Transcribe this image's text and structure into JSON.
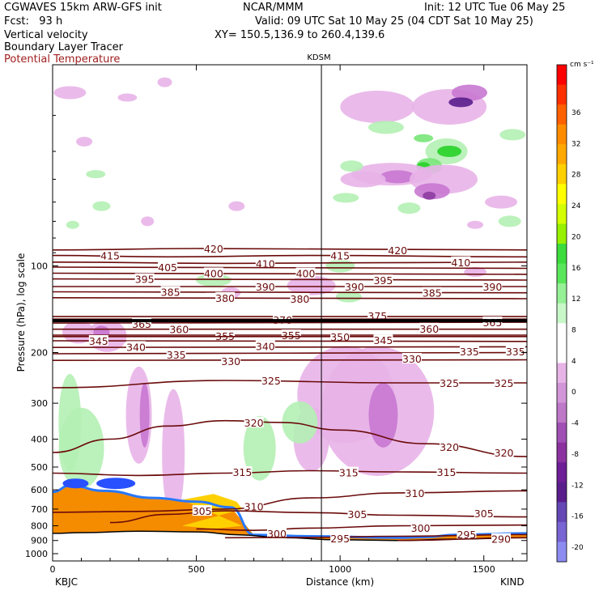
{
  "header": {
    "line1_left": "CGWAVES 15km ARW-GFS init",
    "line1_mid": "NCAR/MMM",
    "line1_right": "Init: 12 UTC Tue 06 May 25",
    "fcst": "Fcst:   93 h",
    "valid": "Valid: 09 UTC Sat 10 May 25 (04 CDT Sat 10 May 25)",
    "field1": "Vertical velocity",
    "field2": "Boundary Layer Tracer",
    "field3": "Potential Temperature",
    "xy": "XY= 150.5,136.9 to 260.4,139.6",
    "station_mid": "KDSM",
    "station_left": "KBJC",
    "station_right": "KIND"
  },
  "colors": {
    "theta": "#6b0a0a",
    "tropopause": "#000000",
    "pos_light": "#b4f0b4",
    "pos_mid": "#78e678",
    "pos_strong": "#28d228",
    "neg_light": "#e8b4e8",
    "neg_mid": "#c878d2",
    "neg_strong": "#8c3ca0",
    "neg_deep": "#5a1e8c",
    "terrain": "#f58c00"
  },
  "chart_data": {
    "type": "cross-section",
    "xlabel": "Distance (km)",
    "ylabel": "Pressure (hPa), log scale",
    "xlim": [
      0,
      1650
    ],
    "ylim": [
      1060,
      20
    ],
    "y_scale": "log",
    "x_ticks": [
      0,
      500,
      1000,
      1500
    ],
    "y_ticks": [
      100,
      200,
      300,
      400,
      500,
      600,
      700,
      800,
      900,
      1000
    ],
    "station_marker_km": 935,
    "tropopause_hpa": 155,
    "colorbar": {
      "unit": "cm s⁻¹",
      "tick_labels": [
        "36",
        "32",
        "28",
        "24",
        "20",
        "16",
        "12",
        "8",
        "4",
        "0",
        "-4",
        "-8",
        "-12",
        "-16",
        "-20"
      ],
      "colors": [
        "#ff0000",
        "#ff3000",
        "#ff6000",
        "#ff8c00",
        "#ffa800",
        "#ffd000",
        "#ffff00",
        "#d4ff00",
        "#96f000",
        "#3cdc3c",
        "#5ae65a",
        "#96f096",
        "#c8f8c8",
        "#ffffff",
        "#ffffff",
        "#e6b4e6",
        "#d296d8",
        "#be78c8",
        "#a050b4",
        "#8c32a0",
        "#6e1e96",
        "#5a1e8c",
        "#6446b4",
        "#7864d2",
        "#8c8cf0"
      ]
    },
    "theta_contours": [
      {
        "label": "415",
        "points": [
          [
            0,
            92
          ],
          [
            400,
            93
          ],
          [
            900,
            92
          ],
          [
            1650,
            93
          ]
        ],
        "label_at": [
          [
            200,
            92
          ],
          [
            1000,
            92
          ]
        ]
      },
      {
        "label": "420",
        "points": [
          [
            0,
            88
          ],
          [
            500,
            87
          ],
          [
            1650,
            88
          ]
        ],
        "label_at": [
          [
            560,
            87
          ],
          [
            1200,
            88
          ]
        ]
      },
      {
        "label": "410",
        "points": [
          [
            0,
            97
          ],
          [
            600,
            98
          ],
          [
            1650,
            97
          ]
        ],
        "label_at": [
          [
            740,
            98
          ],
          [
            1420,
            97
          ]
        ]
      },
      {
        "label": "405",
        "points": [
          [
            0,
            101
          ],
          [
            1650,
            102
          ]
        ],
        "label_at": [
          [
            400,
            101
          ]
        ]
      },
      {
        "label": "400",
        "points": [
          [
            0,
            106
          ],
          [
            1650,
            107
          ]
        ],
        "label_at": [
          [
            560,
            106
          ],
          [
            880,
            106
          ]
        ]
      },
      {
        "label": "395",
        "points": [
          [
            0,
            111
          ],
          [
            1650,
            112
          ]
        ],
        "label_at": [
          [
            320,
            111
          ],
          [
            1150,
            112
          ]
        ]
      },
      {
        "label": "390",
        "points": [
          [
            0,
            118
          ],
          [
            1650,
            118
          ]
        ],
        "label_at": [
          [
            740,
            118
          ],
          [
            1050,
            118
          ],
          [
            1530,
            118
          ]
        ]
      },
      {
        "label": "385",
        "points": [
          [
            0,
            123
          ],
          [
            1650,
            124
          ]
        ],
        "label_at": [
          [
            410,
            123
          ],
          [
            1320,
            124
          ]
        ]
      },
      {
        "label": "380",
        "points": [
          [
            0,
            129
          ],
          [
            1650,
            130
          ]
        ],
        "label_at": [
          [
            600,
            129
          ],
          [
            860,
            130
          ]
        ]
      },
      {
        "label": "375",
        "points": [
          [
            0,
            150
          ],
          [
            1650,
            150
          ]
        ],
        "label_at": [
          [
            1130,
            149
          ]
        ]
      },
      {
        "label": "370",
        "points": [
          [
            0,
            153
          ],
          [
            1650,
            153
          ]
        ],
        "label_at": [
          [
            800,
            154
          ]
        ]
      },
      {
        "label": "365",
        "points": [
          [
            0,
            158
          ],
          [
            1650,
            157
          ]
        ],
        "label_at": [
          [
            310,
            159
          ],
          [
            1530,
            157
          ]
        ]
      },
      {
        "label": "360",
        "points": [
          [
            0,
            166
          ],
          [
            1650,
            166
          ]
        ],
        "label_at": [
          [
            440,
            166
          ],
          [
            1310,
            165
          ]
        ]
      },
      {
        "label": "355",
        "points": [
          [
            0,
            174
          ],
          [
            1650,
            174
          ]
        ],
        "label_at": [
          [
            600,
            175
          ],
          [
            830,
            174
          ]
        ]
      },
      {
        "label": "350",
        "points": [
          [
            0,
            176
          ],
          [
            1650,
            176
          ]
        ],
        "label_at": [
          [
            1000,
            176
          ]
        ]
      },
      {
        "label": "345",
        "points": [
          [
            0,
            182
          ],
          [
            1650,
            183
          ]
        ],
        "label_at": [
          [
            160,
            182
          ],
          [
            1150,
            181
          ]
        ]
      },
      {
        "label": "340",
        "points": [
          [
            0,
            192
          ],
          [
            1650,
            191
          ]
        ],
        "label_at": [
          [
            290,
            191
          ],
          [
            740,
            190
          ]
        ]
      },
      {
        "label": "335",
        "points": [
          [
            0,
            202
          ],
          [
            1650,
            200
          ]
        ],
        "label_at": [
          [
            430,
            203
          ],
          [
            1450,
            198
          ],
          [
            1610,
            198
          ]
        ]
      },
      {
        "label": "330",
        "points": [
          [
            0,
            213
          ],
          [
            1650,
            212
          ]
        ],
        "label_at": [
          [
            620,
            214
          ],
          [
            1250,
            210
          ]
        ]
      },
      {
        "label": "325",
        "points": [
          [
            0,
            265
          ],
          [
            600,
            250
          ],
          [
            1200,
            255
          ],
          [
            1650,
            255
          ]
        ],
        "label_at": [
          [
            760,
            250
          ],
          [
            1380,
            255
          ],
          [
            1570,
            255
          ]
        ]
      },
      {
        "label": "320",
        "points": [
          [
            0,
            445
          ],
          [
            200,
            400
          ],
          [
            400,
            360
          ],
          [
            600,
            345
          ],
          [
            800,
            350
          ],
          [
            1000,
            372
          ],
          [
            1300,
            415
          ],
          [
            1650,
            460
          ]
        ],
        "label_at": [
          [
            700,
            350
          ],
          [
            1380,
            425
          ],
          [
            1570,
            445
          ]
        ]
      },
      {
        "label": "315",
        "points": [
          [
            0,
            525
          ],
          [
            300,
            535
          ],
          [
            600,
            525
          ],
          [
            900,
            515
          ],
          [
            1200,
            520
          ],
          [
            1650,
            525
          ]
        ],
        "label_at": [
          [
            660,
            520
          ],
          [
            1030,
            522
          ],
          [
            1370,
            520
          ]
        ]
      },
      {
        "label": "310",
        "points": [
          [
            0,
            718
          ],
          [
            300,
            713
          ],
          [
            600,
            700
          ],
          [
            900,
            640
          ],
          [
            1200,
            615
          ],
          [
            1650,
            605
          ]
        ],
        "label_at": [
          [
            700,
            685
          ],
          [
            1260,
            615
          ]
        ]
      },
      {
        "label": "305",
        "points": [
          [
            200,
            780
          ],
          [
            400,
            730
          ],
          [
            600,
            710
          ],
          [
            900,
            720
          ],
          [
            1200,
            735
          ],
          [
            1650,
            745
          ]
        ],
        "label_at": [
          [
            520,
            710
          ],
          [
            1060,
            728
          ],
          [
            1500,
            724
          ]
        ]
      },
      {
        "label": "300",
        "points": [
          [
            500,
            820
          ],
          [
            700,
            830
          ],
          [
            900,
            815
          ],
          [
            1200,
            800
          ],
          [
            1650,
            795
          ]
        ],
        "label_at": [
          [
            780,
            850
          ],
          [
            1280,
            812
          ]
        ]
      },
      {
        "label": "295",
        "points": [
          [
            600,
            880
          ],
          [
            900,
            878
          ],
          [
            1200,
            870
          ],
          [
            1650,
            858
          ]
        ],
        "label_at": [
          [
            1000,
            884
          ],
          [
            1440,
            855
          ]
        ]
      },
      {
        "label": "290",
        "points": [
          [
            1200,
            900
          ],
          [
            1650,
            880
          ]
        ],
        "label_at": [
          [
            1560,
            888
          ]
        ]
      }
    ]
  }
}
